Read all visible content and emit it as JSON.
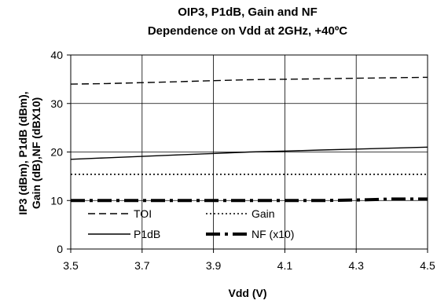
{
  "chart_data": {
    "type": "line",
    "title": "OIP3, P1dB, Gain and NF",
    "subtitle": "Dependence on Vdd at 2GHz, +40ºC",
    "xlabel": "Vdd (V)",
    "ylabel_lines": [
      "IP3 (dBm), P1dB (dBm),",
      "Gain (dB),NF (dBX10)"
    ],
    "xlim": [
      3.5,
      4.5
    ],
    "ylim": [
      0,
      40
    ],
    "x_ticks": [
      3.5,
      3.7,
      3.9,
      4.1,
      4.3,
      4.5
    ],
    "x_tick_labels": [
      "3.5",
      "3.7",
      "3.9",
      "4.1",
      "4.3",
      "4.5"
    ],
    "y_ticks": [
      0,
      10,
      20,
      30,
      40
    ],
    "y_tick_labels": [
      "0",
      "10",
      "20",
      "30",
      "40"
    ],
    "grid": true,
    "legend_position": "lower-center",
    "series": [
      {
        "name": "TOI",
        "style": "dashed",
        "color": "#000000",
        "x": [
          3.5,
          3.6,
          3.7,
          3.8,
          3.9,
          4.0,
          4.1,
          4.2,
          4.3,
          4.4,
          4.5
        ],
        "values": [
          34.0,
          34.1,
          34.3,
          34.5,
          34.7,
          34.9,
          35.0,
          35.1,
          35.2,
          35.3,
          35.4
        ]
      },
      {
        "name": "P1dB",
        "style": "solid",
        "color": "#000000",
        "x": [
          3.5,
          3.6,
          3.7,
          3.8,
          3.9,
          4.0,
          4.1,
          4.2,
          4.3,
          4.4,
          4.5
        ],
        "values": [
          18.5,
          18.8,
          19.1,
          19.4,
          19.7,
          20.0,
          20.2,
          20.4,
          20.6,
          20.8,
          21.0
        ]
      },
      {
        "name": "Gain",
        "style": "dotted",
        "color": "#000000",
        "x": [
          3.5,
          3.6,
          3.7,
          3.8,
          3.9,
          4.0,
          4.1,
          4.2,
          4.3,
          4.4,
          4.5
        ],
        "values": [
          15.4,
          15.4,
          15.4,
          15.4,
          15.4,
          15.4,
          15.4,
          15.4,
          15.4,
          15.4,
          15.4
        ]
      },
      {
        "name": "NF (x10)",
        "style": "dash-dot-thick",
        "color": "#000000",
        "x": [
          3.5,
          3.6,
          3.7,
          3.8,
          3.9,
          4.0,
          4.1,
          4.2,
          4.3,
          4.4,
          4.5
        ],
        "values": [
          10.0,
          10.0,
          10.0,
          10.0,
          10.0,
          10.0,
          10.0,
          10.0,
          10.1,
          10.3,
          10.3
        ]
      }
    ]
  }
}
